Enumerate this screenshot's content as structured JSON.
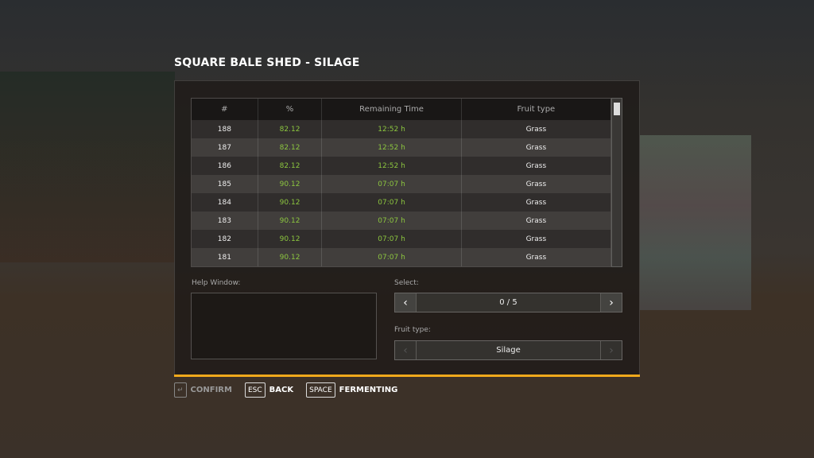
{
  "title": "SQUARE BALE SHED - SILAGE",
  "table": {
    "headers": [
      "#",
      "%",
      "Remaining Time",
      "Fruit type"
    ],
    "rows": [
      [
        "188",
        "82.12",
        "12:52 h",
        "Grass"
      ],
      [
        "187",
        "82.12",
        "12:52 h",
        "Grass"
      ],
      [
        "186",
        "82.12",
        "12:52 h",
        "Grass"
      ],
      [
        "185",
        "90.12",
        "07:07 h",
        "Grass"
      ],
      [
        "184",
        "90.12",
        "07:07 h",
        "Grass"
      ],
      [
        "183",
        "90.12",
        "07:07 h",
        "Grass"
      ],
      [
        "182",
        "90.12",
        "07:07 h",
        "Grass"
      ],
      [
        "181",
        "90.12",
        "07:07 h",
        "Grass"
      ]
    ]
  },
  "help": {
    "label": "Help Window:"
  },
  "select": {
    "label": "Select:",
    "value": "0 / 5",
    "prev": "‹",
    "next": "›"
  },
  "fruit": {
    "label": "Fruit type:",
    "value": "Silage",
    "prev": "‹",
    "next": "›"
  },
  "footer": [
    {
      "key": "↵",
      "label": "CONFIRM"
    },
    {
      "key": "ESC",
      "label": "BACK"
    },
    {
      "key": "SPACE",
      "label": "FERMENTING"
    }
  ],
  "colors": {
    "accent": "#f0a91c",
    "value_green": "#8cc63f"
  }
}
